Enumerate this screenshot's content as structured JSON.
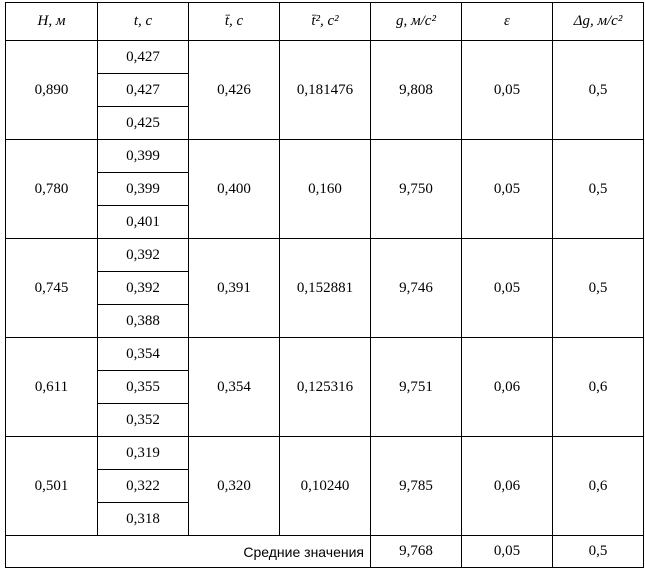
{
  "table": {
    "headers": [
      "H, м",
      "t, c",
      "t̄, c",
      "t̄², c²",
      "g, м/c²",
      "ε",
      "Δg, м/c²"
    ],
    "rows": [
      {
        "H": "0,890",
        "t": [
          "0,427",
          "0,427",
          "0,425"
        ],
        "t_mean": "0,426",
        "t_mean_sq": "0,181476",
        "g": "9,808",
        "eps": "0,05",
        "dg": "0,5"
      },
      {
        "H": "0,780",
        "t": [
          "0,399",
          "0,399",
          "0,401"
        ],
        "t_mean": "0,400",
        "t_mean_sq": "0,160",
        "g": "9,750",
        "eps": "0,05",
        "dg": "0,5"
      },
      {
        "H": "0,745",
        "t": [
          "0,392",
          "0,392",
          "0,388"
        ],
        "t_mean": "0,391",
        "t_mean_sq": "0,152881",
        "g": "9,746",
        "eps": "0,05",
        "dg": "0,5"
      },
      {
        "H": "0,611",
        "t": [
          "0,354",
          "0,355",
          "0,352"
        ],
        "t_mean": "0,354",
        "t_mean_sq": "0,125316",
        "g": "9,751",
        "eps": "0,06",
        "dg": "0,6"
      },
      {
        "H": "0,501",
        "t": [
          "0,319",
          "0,322",
          "0,318"
        ],
        "t_mean": "0,320",
        "t_mean_sq": "0,10240",
        "g": "9,785",
        "eps": "0,06",
        "dg": "0,6"
      }
    ],
    "footer": {
      "label": "Средние значения",
      "g": "9,768",
      "eps": "0,05",
      "dg": "0,5"
    }
  }
}
